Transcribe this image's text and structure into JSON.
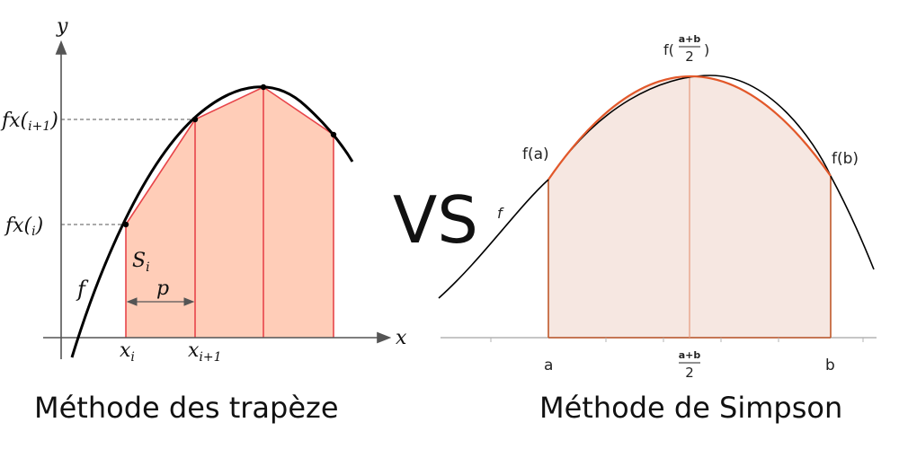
{
  "left": {
    "axis_y": "y",
    "axis_x": "x",
    "f_label": "f",
    "fx_i_main": "fx(",
    "fx_i_sub": "i",
    "fx_i_close": ")",
    "fx_i1_main": "fx(",
    "fx_i1_sub": "i+1",
    "fx_i1_close": ")",
    "s_main": "S",
    "s_sub": "i",
    "p_label": "p",
    "x_i_main": "x",
    "x_i_sub": "i",
    "x_i1_main": "x",
    "x_i1_sub": "i+1",
    "caption": "Méthode des trapèze"
  },
  "vs_label": "VS",
  "right": {
    "f_label": "f",
    "fa_label": "f(a)",
    "fb_label": "f(b)",
    "fmid_prefix": "f(",
    "fmid_num": "a+b",
    "fmid_den": "2",
    "fmid_suffix": ")",
    "a_label": "a",
    "mid_num": "a+b",
    "mid_den": "2",
    "b_label": "b",
    "caption": "Méthode de Simpson"
  },
  "colors": {
    "trap_fill": "#ffcdb8",
    "trap_edge": "#e8454a",
    "simpson_fill": "#f6e7e1",
    "simpson_edge": "#c0582a",
    "simpson_parabola": "#e2582a"
  }
}
